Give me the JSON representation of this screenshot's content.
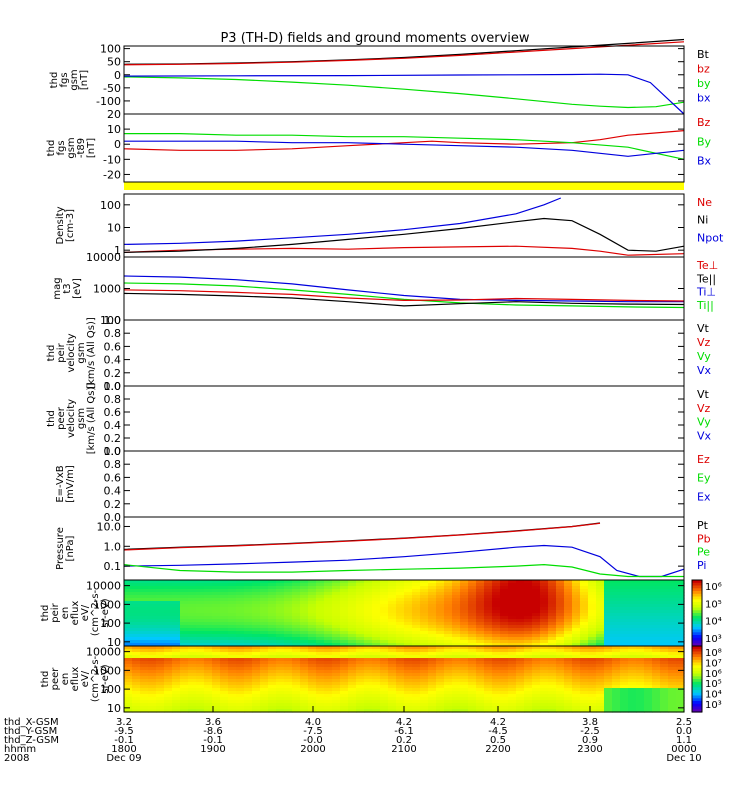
{
  "title": "P3 (TH-D) fields and ground moments overview",
  "colors": {
    "black": "#000000",
    "red": "#dd0000",
    "green": "#00dd00",
    "blue": "#0000dd",
    "yellow": "#ffff00"
  },
  "chart_data": [
    {
      "type": "line",
      "ylabel": [
        "thd",
        "fgs",
        "gsm",
        "[nT]"
      ],
      "ylim": [
        -150,
        110
      ],
      "yticks": [
        {
          "v": 100,
          "label": "100"
        },
        {
          "v": 50,
          "label": "50"
        },
        {
          "v": 0,
          "label": "0"
        },
        {
          "v": -50,
          "label": "-50"
        },
        {
          "v": -100,
          "label": "-100"
        }
      ],
      "legend": [
        {
          "text": "Bt",
          "color": "black"
        },
        {
          "text": "bz",
          "color": "red"
        },
        {
          "text": "by",
          "color": "green"
        },
        {
          "text": "bx",
          "color": "blue"
        }
      ],
      "series": [
        {
          "name": "Bt",
          "color": "black",
          "x": [
            0,
            0.1,
            0.2,
            0.3,
            0.4,
            0.5,
            0.6,
            0.7,
            0.8,
            0.9,
            1.0
          ],
          "y": [
            40,
            41,
            45,
            50,
            57,
            66,
            78,
            92,
            106,
            120,
            135
          ]
        },
        {
          "name": "bz",
          "color": "red",
          "x": [
            0,
            0.1,
            0.2,
            0.3,
            0.4,
            0.5,
            0.6,
            0.7,
            0.8,
            0.9,
            1.0
          ],
          "y": [
            38,
            40,
            43,
            48,
            55,
            63,
            74,
            87,
            100,
            113,
            126
          ]
        },
        {
          "name": "by",
          "color": "green",
          "x": [
            0,
            0.1,
            0.2,
            0.3,
            0.4,
            0.5,
            0.6,
            0.7,
            0.8,
            0.85,
            0.9,
            0.95,
            1.0
          ],
          "y": [
            -8,
            -12,
            -18,
            -28,
            -40,
            -55,
            -72,
            -92,
            -113,
            -120,
            -125,
            -122,
            -105
          ]
        },
        {
          "name": "bx",
          "color": "blue",
          "x": [
            0,
            0.2,
            0.4,
            0.6,
            0.7,
            0.8,
            0.85,
            0.9,
            0.94,
            0.97,
            1.0
          ],
          "y": [
            -5,
            -4,
            -3,
            -1,
            0,
            1,
            2,
            0,
            -30,
            -90,
            -150
          ]
        }
      ]
    },
    {
      "type": "line",
      "ylabel": [
        "thd",
        "fgs",
        "gsm",
        "-t89",
        "[nT]"
      ],
      "ylim": [
        -25,
        20
      ],
      "yticks": [
        {
          "v": 20,
          "label": "20"
        },
        {
          "v": 10,
          "label": "10"
        },
        {
          "v": 0,
          "label": "0"
        },
        {
          "v": -10,
          "label": "-10"
        },
        {
          "v": -20,
          "label": "-20"
        }
      ],
      "legend": [
        {
          "text": "Bz",
          "color": "red"
        },
        {
          "text": "By",
          "color": "green"
        },
        {
          "text": "Bx",
          "color": "blue"
        }
      ],
      "series": [
        {
          "name": "Bz",
          "color": "red",
          "x": [
            0,
            0.1,
            0.2,
            0.3,
            0.4,
            0.5,
            0.55,
            0.6,
            0.7,
            0.8,
            0.85,
            0.9,
            1.0
          ],
          "y": [
            -3,
            -4,
            -4,
            -3,
            -1,
            1,
            2,
            1,
            0,
            1,
            3,
            6,
            9
          ]
        },
        {
          "name": "By",
          "color": "green",
          "x": [
            0,
            0.1,
            0.2,
            0.3,
            0.4,
            0.5,
            0.6,
            0.7,
            0.8,
            0.9,
            1.0
          ],
          "y": [
            7,
            7,
            6,
            6,
            5,
            5,
            4,
            3,
            1,
            -2,
            -10
          ]
        },
        {
          "name": "Bx",
          "color": "blue",
          "x": [
            0,
            0.1,
            0.2,
            0.3,
            0.4,
            0.5,
            0.6,
            0.7,
            0.8,
            0.85,
            0.9,
            1.0
          ],
          "y": [
            2,
            2,
            2,
            1,
            1,
            0,
            -1,
            -2,
            -4,
            -6,
            -8,
            -4
          ]
        }
      ]
    },
    {
      "type": "line",
      "ylabel": [
        "Density",
        "[cm-3]"
      ],
      "ylog": true,
      "ylim": [
        0.5,
        300
      ],
      "yticks": [
        {
          "v": 100,
          "label": "100"
        },
        {
          "v": 10,
          "label": "10"
        },
        {
          "v": 1,
          "label": "1"
        }
      ],
      "legend": [
        {
          "text": "Ne",
          "color": "red"
        },
        {
          "text": "Ni",
          "color": "black"
        },
        {
          "text": "Npot",
          "color": "blue"
        }
      ],
      "series": [
        {
          "name": "Ne",
          "color": "red",
          "x": [
            0,
            0.1,
            0.2,
            0.3,
            0.4,
            0.5,
            0.6,
            0.7,
            0.8,
            0.85,
            0.9,
            1.0
          ],
          "y": [
            0.8,
            1.0,
            1.1,
            1.2,
            1.1,
            1.3,
            1.4,
            1.5,
            1.2,
            0.9,
            0.6,
            0.7
          ]
        },
        {
          "name": "Ni",
          "color": "black",
          "x": [
            0,
            0.1,
            0.2,
            0.3,
            0.4,
            0.5,
            0.6,
            0.7,
            0.75,
            0.8,
            0.85,
            0.9,
            0.95,
            1.0
          ],
          "y": [
            0.8,
            0.9,
            1.2,
            1.8,
            3,
            5,
            9,
            18,
            25,
            20,
            5,
            1,
            0.9,
            1.5
          ]
        },
        {
          "name": "Npot",
          "color": "blue",
          "x": [
            0,
            0.1,
            0.2,
            0.3,
            0.4,
            0.5,
            0.6,
            0.7,
            0.75,
            0.78
          ],
          "y": [
            1.8,
            2,
            2.5,
            3.5,
            5,
            8,
            15,
            40,
            100,
            200
          ]
        }
      ]
    },
    {
      "type": "line",
      "ylabel": [
        "mag",
        "t3",
        "[eV]"
      ],
      "ylog": true,
      "ylim": [
        100,
        10000
      ],
      "yticks": [
        {
          "v": 10000,
          "label": "10000"
        },
        {
          "v": 1000,
          "label": "1000"
        },
        {
          "v": 100,
          "label": "100"
        }
      ],
      "legend": [
        {
          "text": "Te⊥",
          "color": "red"
        },
        {
          "text": "Te||",
          "color": "black"
        },
        {
          "text": "Ti⊥",
          "color": "blue"
        },
        {
          "text": "Ti||",
          "color": "green"
        }
      ],
      "series": [
        {
          "name": "Ti⊥",
          "color": "blue",
          "x": [
            0,
            0.1,
            0.2,
            0.3,
            0.4,
            0.5,
            0.6,
            0.7,
            0.8,
            0.9,
            1.0
          ],
          "y": [
            2500,
            2300,
            1900,
            1400,
            900,
            600,
            450,
            420,
            400,
            380,
            380
          ]
        },
        {
          "name": "Ti||",
          "color": "green",
          "x": [
            0,
            0.1,
            0.2,
            0.3,
            0.4,
            0.5,
            0.6,
            0.7,
            0.8,
            0.9,
            1.0
          ],
          "y": [
            1500,
            1400,
            1200,
            900,
            650,
            450,
            350,
            300,
            280,
            260,
            250
          ]
        },
        {
          "name": "Te⊥",
          "color": "red",
          "x": [
            0,
            0.1,
            0.2,
            0.3,
            0.4,
            0.5,
            0.6,
            0.7,
            0.8,
            0.9,
            1.0
          ],
          "y": [
            900,
            850,
            750,
            650,
            500,
            420,
            430,
            480,
            450,
            420,
            400
          ]
        },
        {
          "name": "Te||",
          "color": "black",
          "x": [
            0,
            0.1,
            0.2,
            0.3,
            0.4,
            0.5,
            0.6,
            0.7,
            0.8,
            0.9,
            1.0
          ],
          "y": [
            700,
            650,
            580,
            500,
            380,
            280,
            330,
            380,
            340,
            320,
            310
          ]
        }
      ]
    },
    {
      "type": "line",
      "ylabel": [
        "thd",
        "peir",
        "velocity",
        "gsm",
        "[km/s (All Qs)]"
      ],
      "ylim": [
        0,
        1.0
      ],
      "yticks": [
        {
          "v": 1.0,
          "label": "1.0"
        },
        {
          "v": 0.8,
          "label": "0.8"
        },
        {
          "v": 0.6,
          "label": "0.6"
        },
        {
          "v": 0.4,
          "label": "0.4"
        },
        {
          "v": 0.2,
          "label": "0.2"
        },
        {
          "v": 0.0,
          "label": "0.0"
        }
      ],
      "legend": [
        {
          "text": "Vt",
          "color": "black"
        },
        {
          "text": "Vz",
          "color": "red"
        },
        {
          "text": "Vy",
          "color": "green"
        },
        {
          "text": "Vx",
          "color": "blue"
        }
      ],
      "series": []
    },
    {
      "type": "line",
      "ylabel": [
        "thd",
        "peer",
        "velocity",
        "gsm",
        "[km/s (All Qs)]"
      ],
      "ylim": [
        0,
        1.0
      ],
      "yticks": [
        {
          "v": 1.0,
          "label": "1.0"
        },
        {
          "v": 0.8,
          "label": "0.8"
        },
        {
          "v": 0.6,
          "label": "0.6"
        },
        {
          "v": 0.4,
          "label": "0.4"
        },
        {
          "v": 0.2,
          "label": "0.2"
        },
        {
          "v": 0.0,
          "label": "0.0"
        }
      ],
      "legend": [
        {
          "text": "Vt",
          "color": "black"
        },
        {
          "text": "Vz",
          "color": "red"
        },
        {
          "text": "Vy",
          "color": "green"
        },
        {
          "text": "Vx",
          "color": "blue"
        }
      ],
      "series": []
    },
    {
      "type": "line",
      "ylabel": [
        "E=-VxB",
        "[mV/m]"
      ],
      "ylim": [
        0,
        1.0
      ],
      "yticks": [
        {
          "v": 1.0,
          "label": "1.0"
        },
        {
          "v": 0.8,
          "label": "0.8"
        },
        {
          "v": 0.6,
          "label": "0.6"
        },
        {
          "v": 0.4,
          "label": "0.4"
        },
        {
          "v": 0.2,
          "label": "0.2"
        },
        {
          "v": 0.0,
          "label": "0.0"
        }
      ],
      "legend": [
        {
          "text": "Ez",
          "color": "red"
        },
        {
          "text": "Ey",
          "color": "green"
        },
        {
          "text": "Ex",
          "color": "blue"
        }
      ],
      "series": []
    },
    {
      "type": "line",
      "ylabel": [
        "Pressure",
        "[nPa]"
      ],
      "ylog": true,
      "ylim": [
        0.02,
        30
      ],
      "yticks": [
        {
          "v": 10,
          "label": "10.0"
        },
        {
          "v": 1,
          "label": "1.0"
        },
        {
          "v": 0.1,
          "label": "0.1"
        }
      ],
      "legend": [
        {
          "text": "Pt",
          "color": "black"
        },
        {
          "text": "Pb",
          "color": "red"
        },
        {
          "text": "Pe",
          "color": "green"
        },
        {
          "text": "Pi",
          "color": "blue"
        }
      ],
      "series": [
        {
          "name": "Pt",
          "color": "black",
          "x": [
            0,
            0.1,
            0.2,
            0.3,
            0.4,
            0.5,
            0.6,
            0.7,
            0.8,
            0.85
          ],
          "y": [
            0.7,
            0.9,
            1.1,
            1.4,
            1.9,
            2.6,
            3.8,
            6,
            10,
            15
          ]
        },
        {
          "name": "Pb",
          "color": "red",
          "x": [
            0,
            0.1,
            0.2,
            0.3,
            0.4,
            0.5,
            0.6,
            0.7,
            0.8,
            0.85
          ],
          "y": [
            0.65,
            0.85,
            1.05,
            1.35,
            1.8,
            2.5,
            3.7,
            5.8,
            9.8,
            14.5
          ]
        },
        {
          "name": "Pi",
          "color": "blue",
          "x": [
            0,
            0.1,
            0.2,
            0.3,
            0.4,
            0.5,
            0.6,
            0.7,
            0.75,
            0.8,
            0.85,
            0.88,
            0.92,
            0.96,
            1.0
          ],
          "y": [
            0.1,
            0.11,
            0.13,
            0.16,
            0.2,
            0.3,
            0.5,
            0.9,
            1.1,
            0.9,
            0.3,
            0.06,
            0.03,
            0.03,
            0.07
          ]
        },
        {
          "name": "Pe",
          "color": "green",
          "x": [
            0,
            0.1,
            0.2,
            0.3,
            0.4,
            0.5,
            0.6,
            0.7,
            0.75,
            0.8,
            0.85,
            0.9,
            1.0
          ],
          "y": [
            0.12,
            0.06,
            0.05,
            0.05,
            0.06,
            0.07,
            0.08,
            0.1,
            0.12,
            0.09,
            0.04,
            0.03,
            0.03
          ]
        }
      ]
    },
    {
      "type": "heatmap",
      "ylabel": [
        "thd",
        "peir",
        "en",
        "eflux",
        "eV/",
        "(cm^2-s-",
        "sr-eV)"
      ],
      "ylog": true,
      "ylim": [
        6,
        20000
      ],
      "yticks": [
        {
          "v": 10000,
          "label": "10000"
        },
        {
          "v": 1000,
          "label": "1000"
        },
        {
          "v": 100,
          "label": "100"
        },
        {
          "v": 10,
          "label": "10"
        }
      ],
      "colorbar": {
        "ticks": [
          "10⁶",
          "10⁵",
          "10⁴",
          "10³"
        ]
      }
    },
    {
      "type": "heatmap",
      "ylabel": [
        "thd",
        "peer",
        "en",
        "eflux",
        "eV/",
        "(cm^2-s-",
        "sr-eV)"
      ],
      "ylog": true,
      "ylim": [
        6,
        20000
      ],
      "yticks": [
        {
          "v": 10000,
          "label": "10000"
        },
        {
          "v": 1000,
          "label": "1000"
        },
        {
          "v": 100,
          "label": "100"
        },
        {
          "v": 10,
          "label": "10"
        }
      ],
      "colorbar": {
        "ticks": [
          "10⁸",
          "10⁷",
          "10⁶",
          "10⁵",
          "10⁴",
          "10³"
        ]
      }
    }
  ],
  "xaxis": {
    "rows": [
      {
        "label": "thd_X-GSM",
        "values": [
          "3.2",
          "3.6",
          "4.0",
          "4.2",
          "4.2",
          "3.8",
          "2.5"
        ]
      },
      {
        "label": "thd_Y-GSM",
        "values": [
          "-9.5",
          "-8.6",
          "-7.5",
          "-6.1",
          "-4.5",
          "-2.5",
          "0.0"
        ]
      },
      {
        "label": "thd_Z-GSM",
        "values": [
          "-0.1",
          "-0.1",
          "-0.0",
          "0.2",
          "0.5",
          "0.9",
          "1.1"
        ]
      },
      {
        "label": "hhmm",
        "values": [
          "1800",
          "1900",
          "2000",
          "2100",
          "2200",
          "2300",
          "0000"
        ]
      },
      {
        "label": "2008",
        "values": [
          "Dec 09",
          "",
          "",
          "",
          "",
          "",
          "Dec 10"
        ]
      }
    ]
  }
}
